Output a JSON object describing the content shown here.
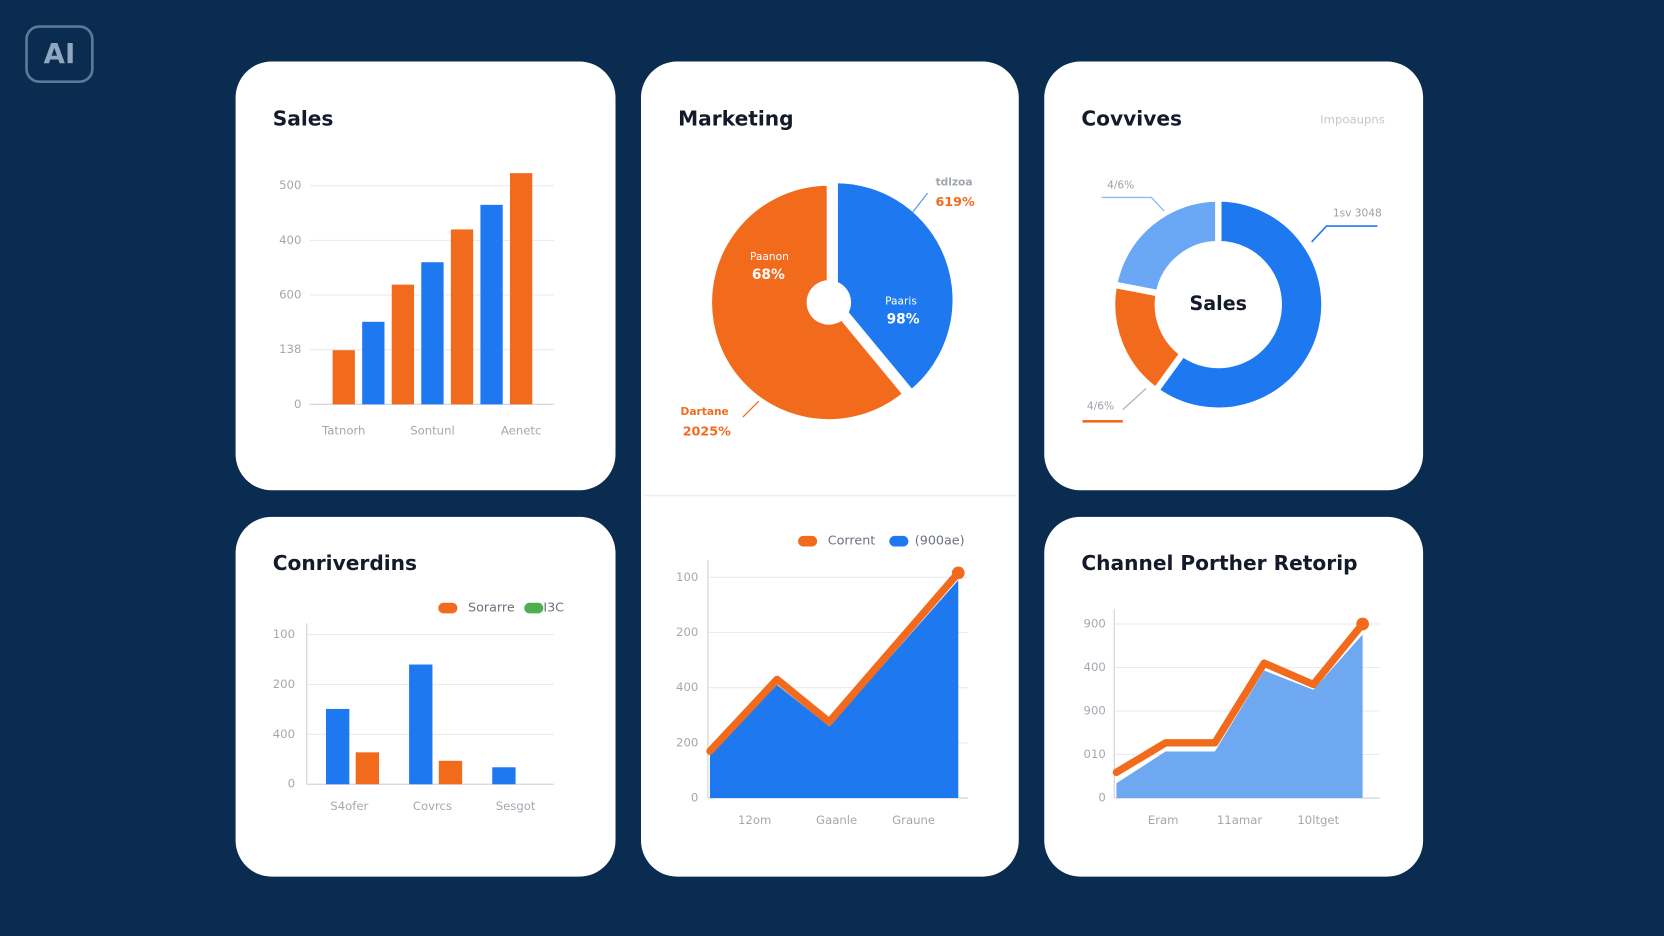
{
  "badge": "AI",
  "chart_data": [
    {
      "type": "bar",
      "title": "Sales",
      "categories": [
        "Tatnorh",
        null,
        null,
        "Sontunl",
        null,
        null,
        "Aenetc"
      ],
      "values": [
        99,
        151,
        219,
        260,
        320,
        365,
        423
      ],
      "colors": [
        "#f26b1d",
        "#1e78f0",
        "#f26b1d",
        "#1e78f0",
        "#f26b1d",
        "#1e78f0",
        "#f26b1d"
      ],
      "ylim": [
        0,
        440
      ],
      "yticks": [
        0,
        {
          "value": 100,
          "label": "138"
        },
        {
          "value": 200,
          "label": "600"
        },
        {
          "value": 300,
          "label": "400"
        },
        {
          "value": 400,
          "label": "500"
        }
      ],
      "grid": true
    },
    {
      "type": "pie",
      "title": "Marketing",
      "categories": [
        "Paaris",
        "Paanon"
      ],
      "values": [
        39,
        61
      ],
      "colors": [
        "#1e78f0",
        "#f26b1d"
      ],
      "annotations": [
        "98%",
        "68%",
        "tdlzoa",
        "619%",
        "Dartane",
        "2025%"
      ]
    },
    {
      "type": "area",
      "x": [
        0,
        2.7,
        4.8,
        10
      ],
      "xlim": [
        0,
        10
      ],
      "xticks": [
        {
          "value": 1.8,
          "label": "12om"
        },
        {
          "value": 5.1,
          "label": "Gaanle"
        },
        {
          "value": 8.2,
          "label": "Graune"
        }
      ],
      "series": [
        {
          "name": "(900ae)",
          "color": "#1e78f0",
          "area": true,
          "values": [
            80,
            205,
            130,
            395
          ]
        },
        {
          "name": "Corrent",
          "color": "#f26b1d",
          "values": [
            85,
            215,
            138,
            408
          ]
        }
      ],
      "ylim": [
        0,
        420
      ],
      "yticks": [
        0,
        {
          "value": 100,
          "label": "200"
        },
        {
          "value": 200,
          "label": "400"
        },
        {
          "value": 300,
          "label": "200"
        },
        {
          "value": 400,
          "label": "100"
        }
      ],
      "grid": true
    },
    {
      "type": "donut",
      "title": "Covvives",
      "subtitle": "Impoaupns",
      "center_label": "Sales",
      "values": [
        60,
        18,
        22
      ],
      "colors": [
        "#1e78f0",
        "#f26b1d",
        "#6aa8f5"
      ],
      "annotations": [
        "4/6%",
        "1sv 3048",
        "4/6%"
      ]
    },
    {
      "type": "bar",
      "title": "Conriverdins",
      "categories": [
        "S4ofer",
        "Covrcs",
        "Sesgot"
      ],
      "series": [
        {
          "color": "#1e78f0",
          "values": [
            151,
            240,
            34
          ]
        },
        {
          "name": "Sorarre",
          "color": "#f26b1d",
          "values": [
            64,
            47,
            null
          ]
        }
      ],
      "legend": [
        {
          "name": "Sorarre",
          "color": "#f26b1d"
        },
        {
          "name": "I3C",
          "color": "#4caf50"
        }
      ],
      "ylim": [
        0,
        310
      ],
      "yticks": [
        0,
        {
          "value": 100,
          "label": "400"
        },
        {
          "value": 200,
          "label": "200"
        },
        {
          "value": 300,
          "label": "100"
        }
      ],
      "grid": true
    },
    {
      "type": "area",
      "title": "Channel Porther Retorip",
      "x": [
        0,
        1,
        2,
        3,
        4,
        5
      ],
      "xlim": [
        0,
        5
      ],
      "xticks": [
        {
          "value": 0.95,
          "label": "Eram"
        },
        {
          "value": 2.5,
          "label": "11amar"
        },
        {
          "value": 4.1,
          "label": "10ltget"
        }
      ],
      "series": [
        {
          "color": "#6ea8f0",
          "area": true,
          "values": [
            34,
            107,
            107,
            293,
            249,
            376
          ]
        },
        {
          "color": "#f26b1d",
          "values": [
            59,
            127,
            127,
            310,
            261,
            400
          ]
        }
      ],
      "ylim": [
        0,
        420
      ],
      "yticks": [
        0,
        {
          "value": 100,
          "label": "010"
        },
        {
          "value": 200,
          "label": "900"
        },
        {
          "value": 300,
          "label": "400"
        },
        {
          "value": 400,
          "label": "900"
        }
      ],
      "grid": true
    }
  ]
}
